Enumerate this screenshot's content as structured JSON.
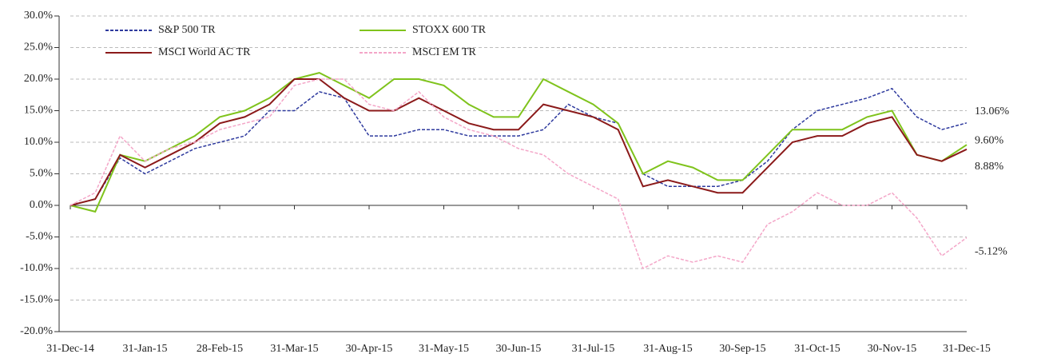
{
  "chart_data": {
    "type": "line",
    "categories": [
      "31-Dec-14",
      null,
      null,
      "31-Jan-15",
      null,
      null,
      "28-Feb-15",
      null,
      null,
      "31-Mar-15",
      null,
      null,
      "30-Apr-15",
      null,
      null,
      "31-May-15",
      null,
      null,
      "30-Jun-15",
      null,
      null,
      "31-Jul-15",
      null,
      null,
      "31-Aug-15",
      null,
      null,
      "30-Sep-15",
      null,
      null,
      "31-Oct-15",
      null,
      null,
      "30-Nov-15",
      null,
      null,
      "31-Dec-15"
    ],
    "series": [
      {
        "name": "S&P 500 TR",
        "color": "#2e3a9e",
        "dash": true,
        "end_label": "13.06%",
        "values": [
          0,
          1,
          7.5,
          5,
          7,
          9,
          10,
          11,
          15,
          15,
          18,
          17,
          11,
          11,
          12,
          12,
          11,
          11,
          11,
          12,
          16,
          14,
          13,
          5,
          3,
          3,
          3,
          4,
          7,
          12,
          15,
          16,
          17,
          18.5,
          14,
          12,
          13.06
        ]
      },
      {
        "name": "STOXX 600 TR",
        "color": "#7fc31c",
        "dash": false,
        "end_label": "9.60%",
        "values": [
          0,
          -1,
          8,
          7,
          9,
          11,
          14,
          15,
          17,
          20,
          21,
          19,
          17,
          20,
          20,
          19,
          16,
          14,
          14,
          20,
          18,
          16,
          13,
          5,
          7,
          6,
          4,
          4,
          8,
          12,
          12,
          12,
          14,
          15,
          8,
          7,
          9.6
        ]
      },
      {
        "name": "MSCI World AC TR",
        "color": "#8b1a1a",
        "dash": false,
        "end_label": "8.88%",
        "values": [
          0,
          1,
          8,
          6,
          8,
          10,
          13,
          14,
          16,
          20,
          20,
          17,
          15,
          15,
          17,
          15,
          13,
          12,
          12,
          16,
          15,
          14,
          12,
          3,
          4,
          3,
          2,
          2,
          6,
          10,
          11,
          11,
          13,
          14,
          8,
          7,
          8.88
        ]
      },
      {
        "name": "MSCI EM TR",
        "color": "#f4a6c8",
        "dash": true,
        "end_label": "-5.12%",
        "values": [
          0,
          2,
          11,
          7,
          9,
          10,
          12,
          13,
          14,
          19,
          20,
          20,
          16,
          15,
          18,
          14,
          12,
          11,
          9,
          8,
          5,
          3,
          1,
          -10,
          -8,
          -9,
          -8,
          -9,
          -3,
          -1,
          2,
          0,
          0,
          2,
          -2,
          -8,
          -5.12
        ]
      }
    ],
    "ylim": [
      -20,
      30
    ],
    "yticks": [
      {
        "value": -20,
        "label": "-20.0%"
      },
      {
        "value": -15,
        "label": "-15.0%"
      },
      {
        "value": -10,
        "label": "-10.0%"
      },
      {
        "value": -5,
        "label": "-5.0%"
      },
      {
        "value": 0,
        "label": "0.0%"
      },
      {
        "value": 5,
        "label": "5.0%"
      },
      {
        "value": 10,
        "label": "10.0%"
      },
      {
        "value": 15,
        "label": "15.0%"
      },
      {
        "value": 20,
        "label": "20.0%"
      },
      {
        "value": 25,
        "label": "25.0%"
      },
      {
        "value": 30,
        "label": "30.0%"
      }
    ],
    "grid": true
  }
}
